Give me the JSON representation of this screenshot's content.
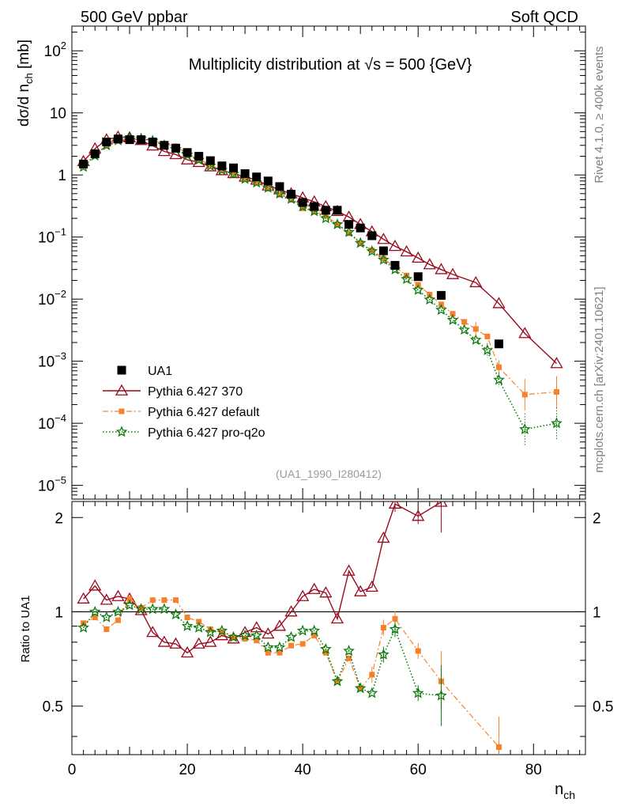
{
  "header": {
    "left": "500 GeV ppbar",
    "right": "Soft QCD"
  },
  "side": {
    "top": "Rivet 4.1.0, ≥ 400k events",
    "bottom": "mcplots.cern.ch [arXiv:2401.10621]"
  },
  "chart_data": {
    "type": "scatter",
    "title": "Multiplicity distribution at √s = 500 {GeV}",
    "analysis_tag": "(UA1_1990_I280412)",
    "xlabel": "n_ch",
    "ylabel": "dσ/d n_ch [mb]",
    "ratio_ylabel": "Ratio to UA1",
    "xlim": [
      0,
      89
    ],
    "ylim": [
      6e-06,
      250
    ],
    "ratio_ylim": [
      0.35,
      2.25
    ],
    "xticks": [
      "0",
      "20",
      "40",
      "60",
      "80"
    ],
    "yticks_main": [
      "10^-5",
      "10^-4",
      "10^-3",
      "10^-2",
      "10^-1",
      "1",
      "10",
      "10^2"
    ],
    "yticks_ratio": [
      "0.5",
      "1",
      "2"
    ],
    "legend": [
      "UA1",
      "Pythia 6.427 370",
      "Pythia 6.427 default",
      "Pythia 6.427 pro-q2o"
    ],
    "colors": {
      "ua1": "#000000",
      "p370": "#990a1e",
      "pdefault": "#f7802b",
      "pq2o": "#0c7a0c"
    },
    "series": [
      {
        "name": "UA1",
        "x": [
          2,
          4,
          6,
          8,
          10,
          12,
          14,
          16,
          18,
          20,
          22,
          24,
          26,
          28,
          30,
          32,
          34,
          36,
          38,
          40,
          42,
          44,
          46,
          48,
          50,
          52,
          54,
          56,
          60,
          64,
          74
        ],
        "y": [
          1.5,
          2.2,
          3.4,
          3.8,
          3.7,
          3.7,
          3.4,
          3.0,
          2.7,
          2.3,
          2.0,
          1.7,
          1.4,
          1.3,
          1.05,
          0.93,
          0.8,
          0.65,
          0.49,
          0.36,
          0.31,
          0.27,
          0.27,
          0.16,
          0.14,
          0.105,
          0.06,
          0.035,
          0.023,
          0.0115,
          0.0019
        ]
      },
      {
        "name": "Pythia 6.427 370",
        "x": [
          2,
          4,
          6,
          8,
          10,
          12,
          14,
          16,
          18,
          20,
          22,
          24,
          26,
          28,
          30,
          32,
          34,
          36,
          38,
          40,
          42,
          44,
          46,
          48,
          50,
          52,
          54,
          56,
          58,
          60,
          62,
          64,
          66,
          70,
          74,
          78.5,
          84
        ],
        "y": [
          1.65,
          2.65,
          3.7,
          4.1,
          4.0,
          3.6,
          2.95,
          2.4,
          2.14,
          1.76,
          1.6,
          1.36,
          1.18,
          1.06,
          0.93,
          0.83,
          0.67,
          0.58,
          0.5,
          0.43,
          0.37,
          0.31,
          0.26,
          0.21,
          0.16,
          0.122,
          0.092,
          0.071,
          0.058,
          0.046,
          0.036,
          0.03,
          0.025,
          0.0185,
          0.0085,
          0.0028,
          0.00092
        ]
      },
      {
        "name": "Pythia 6.427 default",
        "x": [
          2,
          4,
          6,
          8,
          10,
          12,
          14,
          16,
          18,
          20,
          22,
          24,
          26,
          28,
          30,
          32,
          34,
          36,
          38,
          40,
          42,
          44,
          46,
          48,
          50,
          52,
          54,
          56,
          58,
          60,
          62,
          64,
          66,
          68,
          70,
          72,
          74,
          78.5,
          84
        ],
        "y": [
          1.4,
          2.1,
          3.0,
          3.55,
          3.85,
          3.8,
          3.6,
          3.2,
          2.9,
          2.2,
          1.8,
          1.45,
          1.2,
          1.07,
          0.86,
          0.76,
          0.6,
          0.48,
          0.4,
          0.29,
          0.26,
          0.22,
          0.16,
          0.115,
          0.08,
          0.061,
          0.045,
          0.033,
          0.024,
          0.017,
          0.0118,
          0.0082,
          0.0058,
          0.0043,
          0.0033,
          0.0025,
          0.0008,
          0.00029,
          0.00032
        ]
      },
      {
        "name": "Pythia 6.427 pro-q2o",
        "x": [
          2,
          4,
          6,
          8,
          10,
          12,
          14,
          16,
          18,
          20,
          22,
          24,
          26,
          28,
          30,
          32,
          34,
          36,
          38,
          40,
          42,
          44,
          46,
          48,
          50,
          52,
          54,
          56,
          58,
          60,
          62,
          64,
          66,
          68,
          70,
          72,
          74,
          78.5,
          84
        ],
        "y": [
          1.35,
          2.05,
          3.0,
          3.6,
          3.95,
          3.85,
          3.55,
          3.0,
          2.6,
          2.1,
          1.75,
          1.4,
          1.2,
          1.04,
          0.86,
          0.75,
          0.62,
          0.5,
          0.41,
          0.31,
          0.26,
          0.2,
          0.16,
          0.12,
          0.08,
          0.059,
          0.043,
          0.03,
          0.021,
          0.014,
          0.0098,
          0.0067,
          0.0046,
          0.0032,
          0.0022,
          0.0015,
          0.0005,
          8e-05,
          0.0001
        ]
      }
    ],
    "ratio_series": [
      {
        "name": "Pythia 6.427 370",
        "x": [
          2,
          4,
          6,
          8,
          10,
          12,
          14,
          16,
          18,
          20,
          22,
          24,
          26,
          28,
          30,
          32,
          34,
          36,
          38,
          40,
          42,
          44,
          46,
          48,
          50,
          52,
          54,
          56,
          60,
          64
        ],
        "y": [
          1.1,
          1.21,
          1.09,
          1.12,
          1.1,
          1.01,
          0.86,
          0.8,
          0.79,
          0.74,
          0.79,
          0.8,
          0.84,
          0.82,
          0.86,
          0.89,
          0.85,
          0.9,
          1.0,
          1.12,
          1.18,
          1.15,
          0.95,
          1.35,
          1.16,
          1.2,
          1.72,
          2.21,
          2.02,
          2.24
        ]
      },
      {
        "name": "Pythia 6.427 default",
        "x": [
          2,
          4,
          6,
          8,
          10,
          12,
          14,
          16,
          18,
          20,
          22,
          24,
          26,
          28,
          30,
          32,
          34,
          36,
          38,
          40,
          42,
          44,
          46,
          48,
          50,
          52,
          54,
          56,
          60,
          64,
          74
        ],
        "y": [
          0.92,
          0.96,
          0.88,
          0.94,
          1.1,
          1.03,
          1.09,
          1.09,
          1.09,
          0.96,
          0.93,
          0.88,
          0.86,
          0.83,
          0.82,
          0.81,
          0.74,
          0.74,
          0.78,
          0.79,
          0.84,
          0.74,
          0.6,
          0.71,
          0.57,
          0.63,
          0.89,
          0.95,
          0.75,
          0.6,
          0.37
        ]
      },
      {
        "name": "Pythia 6.427 pro-q2o",
        "x": [
          2,
          4,
          6,
          8,
          10,
          12,
          14,
          16,
          18,
          20,
          22,
          24,
          26,
          28,
          30,
          32,
          34,
          36,
          38,
          40,
          42,
          44,
          46,
          48,
          50,
          52,
          54,
          56,
          60,
          64
        ],
        "y": [
          0.89,
          1.0,
          0.96,
          1.0,
          1.05,
          1.02,
          1.02,
          1.02,
          0.98,
          0.9,
          0.89,
          0.86,
          0.87,
          0.83,
          0.84,
          0.84,
          0.77,
          0.77,
          0.83,
          0.87,
          0.87,
          0.76,
          0.6,
          0.75,
          0.57,
          0.55,
          0.73,
          0.88,
          0.55,
          0.54
        ]
      }
    ]
  }
}
